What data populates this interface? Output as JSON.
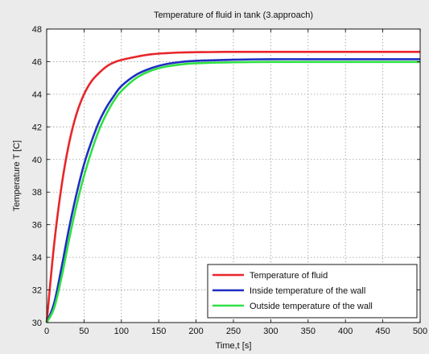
{
  "chart_data": {
    "type": "line",
    "title": "Temperature of fluid in tank (3.approach)",
    "xlabel": "Time,t [s]",
    "ylabel": "Temperature T [C]",
    "xlim": [
      0,
      500
    ],
    "ylim": [
      30,
      48
    ],
    "xticks": [
      0,
      50,
      100,
      150,
      200,
      250,
      300,
      350,
      400,
      450,
      500
    ],
    "yticks": [
      30,
      32,
      34,
      36,
      38,
      40,
      42,
      44,
      46,
      48
    ],
    "grid": true,
    "legend_position": "bottom-right",
    "x": [
      0,
      10,
      20,
      30,
      40,
      50,
      60,
      70,
      80,
      90,
      100,
      120,
      140,
      160,
      180,
      200,
      250,
      300,
      350,
      400,
      450,
      500
    ],
    "series": [
      {
        "name": "Temperature of fluid",
        "color": "#e8262a",
        "values": [
          30.0,
          34.8,
          38.4,
          41.0,
          42.8,
          44.0,
          44.8,
          45.3,
          45.7,
          45.95,
          46.1,
          46.3,
          46.45,
          46.52,
          46.56,
          46.58,
          46.6,
          46.6,
          46.6,
          46.6,
          46.6,
          46.6
        ]
      },
      {
        "name": "Inside temperature of the wall",
        "color": "#1f2ec2",
        "values": [
          30.0,
          31.2,
          33.4,
          35.8,
          37.9,
          39.7,
          41.1,
          42.3,
          43.2,
          43.9,
          44.5,
          45.2,
          45.6,
          45.85,
          45.98,
          46.05,
          46.12,
          46.15,
          46.15,
          46.15,
          46.15,
          46.15
        ]
      },
      {
        "name": "Outside temperature of the wall",
        "color": "#2fe043",
        "values": [
          30.0,
          30.9,
          32.8,
          35.1,
          37.2,
          39.0,
          40.5,
          41.8,
          42.8,
          43.6,
          44.2,
          45.0,
          45.45,
          45.7,
          45.83,
          45.9,
          45.96,
          45.98,
          45.98,
          45.98,
          45.98,
          45.98
        ]
      }
    ]
  }
}
